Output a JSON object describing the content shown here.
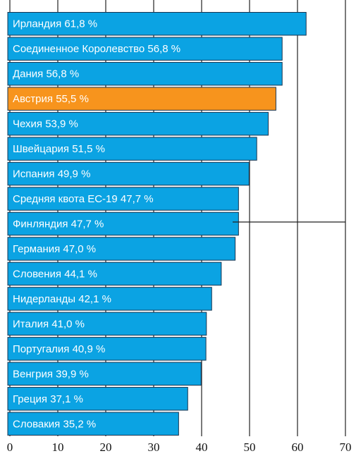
{
  "chart_data": {
    "type": "bar",
    "orientation": "horizontal",
    "categories": [
      "Ирландия",
      "Соединенное Королевство",
      "Дания",
      "Австрия",
      "Чехия",
      "Швейцария",
      "Испания",
      "Средняя квота ЕС-19 ",
      "Финляндия",
      "Германия",
      "Словения",
      "Нидерланды",
      "Италия",
      "Португалия",
      "Венгрия",
      "Греция",
      "Словакия"
    ],
    "values": [
      61.8,
      56.8,
      56.8,
      55.5,
      53.9,
      51.5,
      49.9,
      47.7,
      47.7,
      47.0,
      44.1,
      42.1,
      41.0,
      40.9,
      39.9,
      37.1,
      35.2
    ],
    "value_labels": [
      "61,8 %",
      "56,8 %",
      "56,8 %",
      "55,5 %",
      "53,9 %",
      "51,5 %",
      "49,9 %",
      "47,7 %",
      "47,7 %",
      "47,0 %",
      "44,1 %",
      "42,1 %",
      "41,0 %",
      "40,9 %",
      "39,9 %",
      "37,1 %",
      "35,2 %"
    ],
    "colors": [
      "#0ba3e3",
      "#0ba3e3",
      "#0ba3e3",
      "#f7941d",
      "#0ba3e3",
      "#0ba3e3",
      "#0ba3e3",
      "#0ba3e3",
      "#0ba3e3",
      "#0ba3e3",
      "#0ba3e3",
      "#0ba3e3",
      "#0ba3e3",
      "#0ba3e3",
      "#0ba3e3",
      "#0ba3e3",
      "#0ba3e3"
    ],
    "xlim": [
      0,
      70
    ],
    "xticks": [
      0,
      10,
      20,
      30,
      40,
      50,
      60,
      70
    ],
    "grid": true
  }
}
